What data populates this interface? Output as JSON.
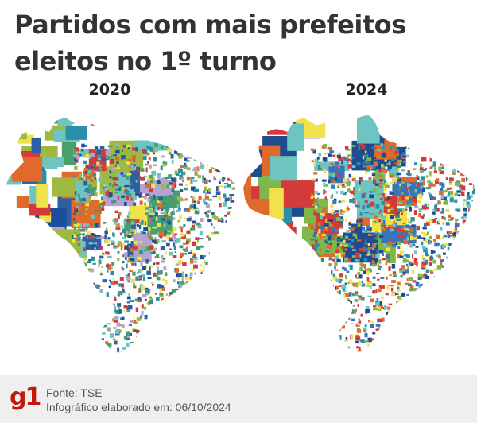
{
  "header": {
    "title": "Partidos com mais prefeitos eleitos no 1º turno"
  },
  "maps": [
    {
      "year_label": "2020",
      "dominant_colors": [
        "#4a9e6b",
        "#2a8fa8",
        "#2e5fa0",
        "#9fb840",
        "#e06a2c",
        "#d33a3a",
        "#6ec4c0",
        "#b6a2cf",
        "#1b4f9c",
        "#f2e24a"
      ]
    },
    {
      "year_label": "2024",
      "dominant_colors": [
        "#2a8fa8",
        "#3a74b8",
        "#1e4c8f",
        "#7fb848",
        "#d33a3a",
        "#e06a2c",
        "#6ec4c0",
        "#f2e24a"
      ]
    }
  ],
  "footer": {
    "logo": "g1",
    "source": "Fonte: TSE",
    "credit": "Infográfico elaborado em: 06/10/2024"
  }
}
